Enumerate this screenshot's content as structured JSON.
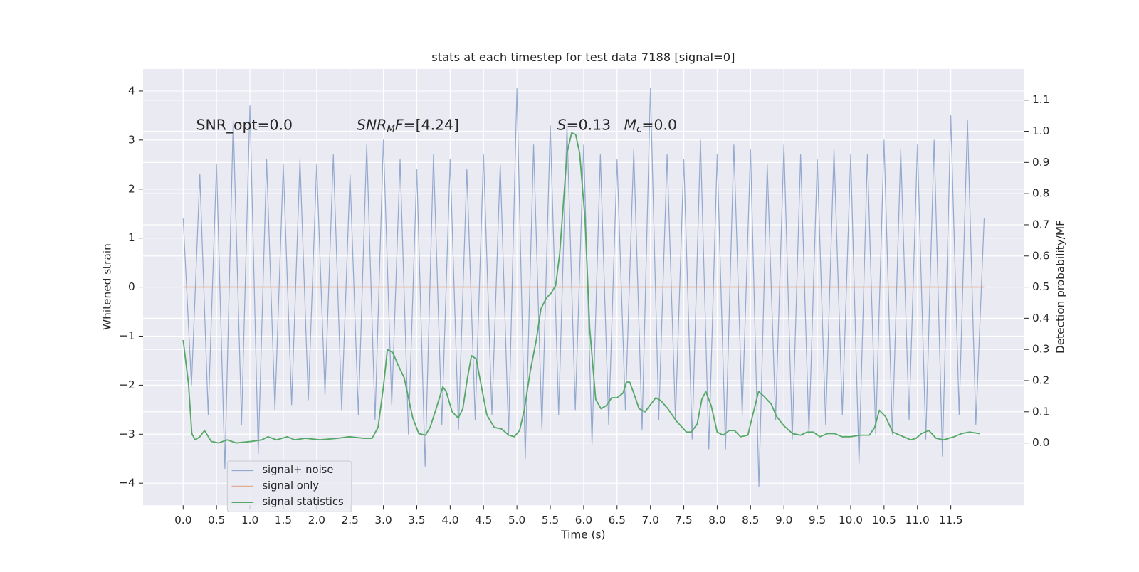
{
  "chart_data": {
    "type": "line",
    "title": "stats at each timestep for test data 7188 [signal=0]",
    "xlabel": "Time (s)",
    "ylabel": "Whitened strain",
    "y2label": "Detection probability/MF",
    "annotations": [
      [
        "SNR_opt=0.0"
      ],
      [
        "SNR",
        "M",
        "F",
        "=[4.24]"
      ],
      [
        "S",
        "=0.13"
      ],
      [
        "M",
        "c",
        "=0.0"
      ]
    ],
    "xlim": [
      -0.6,
      12.6
    ],
    "ylim": [
      -4.45,
      4.45
    ],
    "y2lim": [
      -0.2,
      1.2
    ],
    "xticks": [
      {
        "value": 0,
        "label": "0.0"
      },
      0.5,
      {
        "value": 1,
        "label": "1.0"
      },
      1.5,
      {
        "value": 2,
        "label": "2.0"
      },
      2.5,
      {
        "value": 3,
        "label": "3.0"
      },
      3.5,
      {
        "value": 4,
        "label": "4.0"
      },
      4.5,
      {
        "value": 5,
        "label": "5.0"
      },
      5.5,
      {
        "value": 6,
        "label": "6.0"
      },
      6.5,
      {
        "value": 7,
        "label": "7.0"
      },
      7.5,
      {
        "value": 8,
        "label": "8.0"
      },
      8.5,
      {
        "value": 9,
        "label": "9.0"
      },
      9.5,
      {
        "value": 10,
        "label": "10.0"
      },
      10.5,
      {
        "value": 11,
        "label": "11.0"
      },
      11.5
    ],
    "yticks": [
      {
        "value": -4,
        "label": "−4"
      },
      {
        "value": -3,
        "label": "−3"
      },
      {
        "value": -2,
        "label": "−2"
      },
      {
        "value": -1,
        "label": "−1"
      },
      0,
      1,
      2,
      3,
      4
    ],
    "y2ticks": [
      {
        "value": 0,
        "label": "0.0"
      },
      0.1,
      0.2,
      0.3,
      0.4,
      0.5,
      0.6,
      0.7,
      0.8,
      0.9,
      {
        "value": 1,
        "label": "1.0"
      },
      1.1
    ],
    "grid": true,
    "legend_loc": "lower left",
    "series": [
      {
        "name": "signal+ noise",
        "color": "#4c72b0",
        "x": [
          0,
          0.125,
          0.25,
          0.375,
          0.5,
          0.625,
          0.75,
          0.875,
          1,
          1.125,
          1.25,
          1.375,
          1.5,
          1.625,
          1.75,
          1.875,
          2,
          2.125,
          2.25,
          2.375,
          2.5,
          2.625,
          2.75,
          2.875,
          3,
          3.125,
          3.25,
          3.375,
          3.5,
          3.625,
          3.75,
          3.875,
          4,
          4.125,
          4.25,
          4.375,
          4.5,
          4.625,
          4.75,
          4.875,
          5,
          5.125,
          5.25,
          5.375,
          5.5,
          5.625,
          5.75,
          5.875,
          6,
          6.125,
          6.25,
          6.375,
          6.5,
          6.625,
          6.75,
          6.875,
          7,
          7.125,
          7.25,
          7.375,
          7.5,
          7.625,
          7.75,
          7.875,
          8,
          8.125,
          8.25,
          8.375,
          8.5,
          8.625,
          8.75,
          8.875,
          9,
          9.125,
          9.25,
          9.375,
          9.5,
          9.625,
          9.75,
          9.875,
          10,
          10.125,
          10.25,
          10.375,
          10.5,
          10.625,
          10.75,
          10.875,
          11,
          11.125,
          11.25,
          11.375,
          11.5,
          11.625,
          11.75,
          11.875,
          12
        ],
        "values": [
          1.4,
          -2.0,
          2.3,
          -2.6,
          2.5,
          -3.7,
          3.4,
          -2.8,
          3.7,
          -3.4,
          2.6,
          -2.5,
          2.5,
          -2.4,
          2.6,
          -2.3,
          2.5,
          -2.2,
          2.7,
          -2.5,
          2.3,
          -2.6,
          2.9,
          -2.7,
          3.0,
          -2.4,
          2.6,
          -3.0,
          2.4,
          -3.65,
          2.7,
          -2.8,
          2.6,
          -2.9,
          2.4,
          -2.7,
          2.7,
          -2.6,
          2.5,
          -3.0,
          4.05,
          -3.5,
          2.9,
          -2.9,
          3.3,
          -2.6,
          3.3,
          -2.5,
          2.9,
          -3.2,
          2.7,
          -2.8,
          2.6,
          -2.5,
          2.8,
          -2.9,
          4.05,
          -2.7,
          2.7,
          -2.7,
          2.6,
          -3.1,
          3.0,
          -3.3,
          2.7,
          -3.3,
          2.9,
          -2.6,
          2.8,
          -4.07,
          2.5,
          -2.7,
          2.9,
          -3.1,
          2.7,
          -3.0,
          2.6,
          -2.8,
          2.8,
          -2.6,
          2.7,
          -3.6,
          2.7,
          -3.0,
          3.0,
          -3.0,
          2.8,
          -2.7,
          2.9,
          -3.1,
          3.0,
          -3.45,
          3.5,
          -2.6,
          3.4,
          -2.8,
          1.4
        ]
      },
      {
        "name": "signal only",
        "color": "#dd8452",
        "x": [
          0,
          12
        ],
        "values": [
          0,
          0
        ]
      },
      {
        "name": "signal statistics",
        "color": "#55a868",
        "axis": "y2",
        "x": [
          0,
          0.08,
          0.13,
          0.18,
          0.25,
          0.32,
          0.42,
          0.53,
          0.66,
          0.8,
          1.02,
          1.18,
          1.27,
          1.4,
          1.56,
          1.67,
          1.83,
          2.05,
          2.32,
          2.49,
          2.7,
          2.83,
          2.92,
          3.0,
          3.06,
          3.14,
          3.22,
          3.31,
          3.44,
          3.53,
          3.63,
          3.7,
          3.79,
          3.89,
          3.94,
          4.03,
          4.12,
          4.19,
          4.26,
          4.32,
          4.39,
          4.46,
          4.55,
          4.66,
          4.77,
          4.88,
          4.96,
          5.04,
          5.11,
          5.2,
          5.29,
          5.36,
          5.44,
          5.51,
          5.58,
          5.64,
          5.7,
          5.75,
          5.82,
          5.88,
          5.94,
          6.02,
          6.09,
          6.18,
          6.26,
          6.34,
          6.42,
          6.5,
          6.59,
          6.64,
          6.69,
          6.75,
          6.83,
          6.92,
          6.99,
          7.08,
          7.16,
          7.26,
          7.39,
          7.54,
          7.61,
          7.7,
          7.77,
          7.83,
          7.91,
          8.0,
          8.09,
          8.18,
          8.26,
          8.35,
          8.46,
          8.51,
          8.62,
          8.7,
          8.81,
          8.89,
          9.0,
          9.13,
          9.25,
          9.35,
          9.44,
          9.54,
          9.65,
          9.76,
          9.87,
          10.0,
          10.14,
          10.28,
          10.36,
          10.43,
          10.52,
          10.63,
          10.79,
          10.9,
          10.98,
          11.06,
          11.17,
          11.28,
          11.39,
          11.55,
          11.66,
          11.78,
          11.93
        ],
        "values": [
          0.33,
          0.19,
          0.03,
          0.01,
          0.02,
          0.04,
          0.005,
          0.0,
          0.01,
          0.0,
          0.005,
          0.01,
          0.02,
          0.01,
          0.02,
          0.01,
          0.015,
          0.01,
          0.015,
          0.02,
          0.015,
          0.015,
          0.05,
          0.18,
          0.3,
          0.29,
          0.25,
          0.21,
          0.08,
          0.03,
          0.025,
          0.05,
          0.11,
          0.18,
          0.165,
          0.1,
          0.08,
          0.11,
          0.21,
          0.28,
          0.27,
          0.19,
          0.09,
          0.05,
          0.045,
          0.025,
          0.02,
          0.04,
          0.105,
          0.23,
          0.33,
          0.43,
          0.465,
          0.48,
          0.505,
          0.605,
          0.78,
          0.93,
          0.995,
          0.99,
          0.93,
          0.72,
          0.37,
          0.14,
          0.11,
          0.12,
          0.145,
          0.145,
          0.16,
          0.195,
          0.195,
          0.16,
          0.11,
          0.1,
          0.12,
          0.145,
          0.135,
          0.11,
          0.07,
          0.035,
          0.035,
          0.06,
          0.14,
          0.165,
          0.12,
          0.035,
          0.025,
          0.04,
          0.04,
          0.02,
          0.025,
          0.07,
          0.165,
          0.15,
          0.125,
          0.085,
          0.055,
          0.03,
          0.025,
          0.035,
          0.035,
          0.02,
          0.03,
          0.03,
          0.02,
          0.02,
          0.025,
          0.025,
          0.05,
          0.105,
          0.085,
          0.035,
          0.02,
          0.01,
          0.015,
          0.03,
          0.04,
          0.015,
          0.01,
          0.02,
          0.03,
          0.035,
          0.03
        ]
      }
    ]
  }
}
